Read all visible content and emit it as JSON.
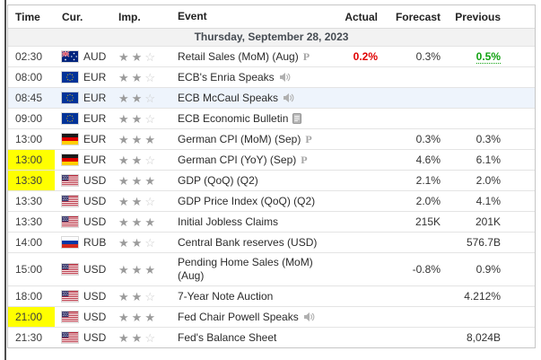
{
  "table": {
    "columns": [
      "Time",
      "Cur.",
      "Imp.",
      "Event",
      "Actual",
      "Forecast",
      "Previous"
    ],
    "date_header": "Thursday, September 28, 2023",
    "colors": {
      "time_highlight_yellow": "#ffff00",
      "selected_row_blue": "#eef4fc",
      "actual_worse_red": "#e00000",
      "previous_better_green": "#11a211"
    },
    "rows": [
      {
        "time": "02:30",
        "time_highlight": false,
        "row_highlight": false,
        "currency": "AUD",
        "flag": "au",
        "importance": 2,
        "event": "Retail Sales (MoM) (Aug)",
        "event_marker": "preliminary",
        "actual": "0.2%",
        "actual_style": "worse",
        "forecast": "0.3%",
        "previous": "0.5%",
        "previous_style": "better"
      },
      {
        "time": "08:00",
        "time_highlight": false,
        "row_highlight": false,
        "currency": "EUR",
        "flag": "eu",
        "importance": 2,
        "event": "ECB's Enria Speaks",
        "event_marker": "speaker",
        "actual": "",
        "actual_style": "",
        "forecast": "",
        "previous": "",
        "previous_style": ""
      },
      {
        "time": "08:45",
        "time_highlight": false,
        "row_highlight": true,
        "currency": "EUR",
        "flag": "eu",
        "importance": 2,
        "event": "ECB McCaul Speaks",
        "event_marker": "speaker",
        "actual": "",
        "actual_style": "",
        "forecast": "",
        "previous": "",
        "previous_style": ""
      },
      {
        "time": "09:00",
        "time_highlight": false,
        "row_highlight": false,
        "currency": "EUR",
        "flag": "eu",
        "importance": 2,
        "event": "ECB Economic Bulletin",
        "event_marker": "report",
        "actual": "",
        "actual_style": "",
        "forecast": "",
        "previous": "",
        "previous_style": ""
      },
      {
        "time": "13:00",
        "time_highlight": false,
        "row_highlight": false,
        "currency": "EUR",
        "flag": "de",
        "importance": 3,
        "event": "German CPI (MoM) (Sep)",
        "event_marker": "preliminary",
        "actual": "",
        "actual_style": "",
        "forecast": "0.3%",
        "previous": "0.3%",
        "previous_style": ""
      },
      {
        "time": "13:00",
        "time_highlight": true,
        "row_highlight": false,
        "currency": "EUR",
        "flag": "de",
        "importance": 2,
        "event": "German CPI (YoY) (Sep)",
        "event_marker": "preliminary",
        "actual": "",
        "actual_style": "",
        "forecast": "4.6%",
        "previous": "6.1%",
        "previous_style": ""
      },
      {
        "time": "13:30",
        "time_highlight": true,
        "row_highlight": false,
        "currency": "USD",
        "flag": "us",
        "importance": 3,
        "event": "GDP (QoQ) (Q2)",
        "event_marker": "",
        "actual": "",
        "actual_style": "",
        "forecast": "2.1%",
        "previous": "2.0%",
        "previous_style": ""
      },
      {
        "time": "13:30",
        "time_highlight": false,
        "row_highlight": false,
        "currency": "USD",
        "flag": "us",
        "importance": 2,
        "event": "GDP Price Index (QoQ) (Q2)",
        "event_marker": "",
        "actual": "",
        "actual_style": "",
        "forecast": "2.0%",
        "previous": "4.1%",
        "previous_style": ""
      },
      {
        "time": "13:30",
        "time_highlight": false,
        "row_highlight": false,
        "currency": "USD",
        "flag": "us",
        "importance": 3,
        "event": "Initial Jobless Claims",
        "event_marker": "",
        "actual": "",
        "actual_style": "",
        "forecast": "215K",
        "previous": "201K",
        "previous_style": ""
      },
      {
        "time": "14:00",
        "time_highlight": false,
        "row_highlight": false,
        "currency": "RUB",
        "flag": "ru",
        "importance": 2,
        "event": "Central Bank reserves (USD)",
        "event_marker": "",
        "actual": "",
        "actual_style": "",
        "forecast": "",
        "previous": "576.7B",
        "previous_style": ""
      },
      {
        "time": "15:00",
        "time_highlight": false,
        "row_highlight": false,
        "currency": "USD",
        "flag": "us",
        "importance": 3,
        "event": "Pending Home Sales (MoM) (Aug)",
        "event_marker": "",
        "actual": "",
        "actual_style": "",
        "forecast": "-0.8%",
        "previous": "0.9%",
        "previous_style": ""
      },
      {
        "time": "18:00",
        "time_highlight": false,
        "row_highlight": false,
        "currency": "USD",
        "flag": "us",
        "importance": 2,
        "event": "7-Year Note Auction",
        "event_marker": "",
        "actual": "",
        "actual_style": "",
        "forecast": "",
        "previous": "4.212%",
        "previous_style": ""
      },
      {
        "time": "21:00",
        "time_highlight": true,
        "row_highlight": false,
        "currency": "USD",
        "flag": "us",
        "importance": 3,
        "event": "Fed Chair Powell Speaks",
        "event_marker": "speaker",
        "actual": "",
        "actual_style": "",
        "forecast": "",
        "previous": "",
        "previous_style": ""
      },
      {
        "time": "21:30",
        "time_highlight": false,
        "row_highlight": false,
        "currency": "USD",
        "flag": "us",
        "importance": 2,
        "event": "Fed's Balance Sheet",
        "event_marker": "",
        "actual": "",
        "actual_style": "",
        "forecast": "",
        "previous": "8,024B",
        "previous_style": ""
      }
    ]
  }
}
